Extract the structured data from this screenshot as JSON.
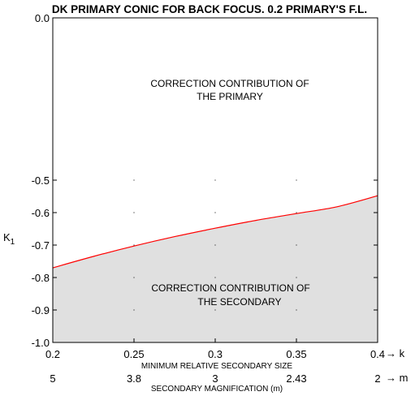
{
  "chart_data": {
    "type": "area",
    "title": "DK PRIMARY CONIC FOR BACK FOCUS. 0.2 PRIMARY'S F.L.",
    "ylabel": "K",
    "ylabel_subscript": "1",
    "xlabel": "MINIMUM RELATIVE SECONDARY SIZE",
    "xlabel2": "SECONDARY MAGNIFICATION (m)",
    "x_arrow_label": "→ k",
    "x2_arrow_label": "→ m",
    "xlim": [
      0.2,
      0.4
    ],
    "ylim": [
      -1.0,
      0.0
    ],
    "x_ticks": [
      0.2,
      0.25,
      0.3,
      0.35,
      0.4
    ],
    "x_tick_labels": [
      "0.2",
      "0.25",
      "0.3",
      "0.35",
      "0.4"
    ],
    "x2_ticks": [
      0.2,
      0.25,
      0.3,
      0.35,
      0.4
    ],
    "x2_tick_labels": [
      "5",
      "3.8",
      "3",
      "2.43",
      "2"
    ],
    "y_ticks": [
      0.0,
      -0.5,
      -0.6,
      -0.7,
      -0.8,
      -0.9,
      -1.0
    ],
    "y_tick_labels": [
      "0.0",
      "-0.5",
      "-0.6",
      "-0.7",
      "-0.8",
      "-0.9",
      "-1.0"
    ],
    "grid": "dots",
    "series": [
      {
        "x": [
          0.2,
          0.225,
          0.25,
          0.275,
          0.3,
          0.325,
          0.35,
          0.375,
          0.4
        ],
        "y": [
          -0.77,
          -0.735,
          -0.703,
          -0.674,
          -0.648,
          -0.624,
          -0.603,
          -0.582,
          -0.548
        ],
        "color": "#ff0000",
        "fill_below": "#e0e0e0"
      }
    ],
    "annotations": [
      {
        "line1": "CORRECTION CONTRIBUTION OF",
        "line2": "THE PRIMARY",
        "x": 0.295,
        "y": -0.2
      },
      {
        "line1": "CORRECTION CONTRIBUTION OF",
        "line2": "THE SECONDARY",
        "x": 0.295,
        "y": -0.85
      }
    ]
  }
}
